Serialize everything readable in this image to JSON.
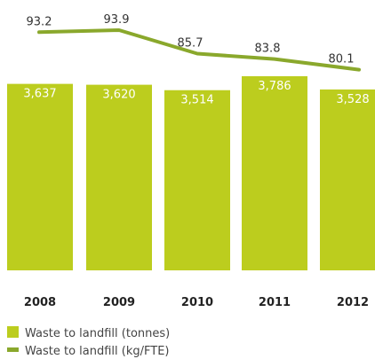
{
  "chart_data": {
    "type": "bar",
    "categories": [
      "2008",
      "2009",
      "2010",
      "2011",
      "2012"
    ],
    "series": [
      {
        "name": "Waste to landfill (tonnes)",
        "type": "bar",
        "values": [
          3637,
          3620,
          3514,
          3786,
          3528
        ],
        "labels": [
          "3,637",
          "3,620",
          "3,514",
          "3,786",
          "3,528"
        ],
        "color": "#bccd1e"
      },
      {
        "name": "Waste to landfill (kg/FTE)",
        "type": "line",
        "values": [
          93.2,
          93.9,
          85.7,
          83.8,
          80.1
        ],
        "labels": [
          "93.2",
          "93.9",
          "85.7",
          "83.8",
          "80.1"
        ],
        "color": "#8aa82c"
      }
    ],
    "legend_position": "bottom-left",
    "grid": false
  }
}
